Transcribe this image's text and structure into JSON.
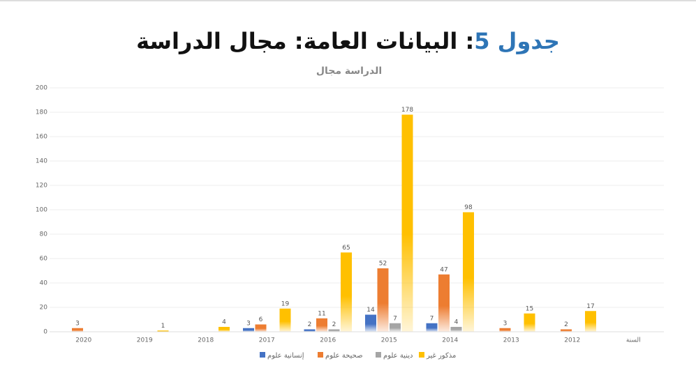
{
  "slide_title": {
    "number": "جدول 5",
    "text": ": البيانات العامة: مجال الدراسة"
  },
  "chart_data": {
    "type": "bar",
    "title": "الدراسة مجال",
    "categories": [
      "2020",
      "2019",
      "2018",
      "2017",
      "2016",
      "2015",
      "2014",
      "2013",
      "2012",
      "السنة"
    ],
    "series": [
      {
        "name": "إنسانية علوم",
        "color": "#4472c4",
        "values": [
          null,
          null,
          null,
          3,
          2,
          14,
          7,
          null,
          null,
          null
        ]
      },
      {
        "name": "صحيحة علوم",
        "color": "#ed7d31",
        "values": [
          3,
          null,
          null,
          6,
          11,
          52,
          47,
          3,
          2,
          null
        ]
      },
      {
        "name": "دينية علوم",
        "color": "#a5a5a5",
        "values": [
          null,
          null,
          null,
          null,
          2,
          7,
          4,
          null,
          null,
          null
        ]
      },
      {
        "name": "مذكور غير",
        "color": "#ffc000",
        "values": [
          null,
          1,
          4,
          19,
          65,
          178,
          98,
          15,
          17,
          null
        ]
      }
    ],
    "ylim": [
      0,
      200
    ],
    "yticks": [
      0,
      20,
      40,
      60,
      80,
      100,
      120,
      140,
      160,
      180,
      200
    ],
    "grid": true,
    "legend": "bottom"
  }
}
